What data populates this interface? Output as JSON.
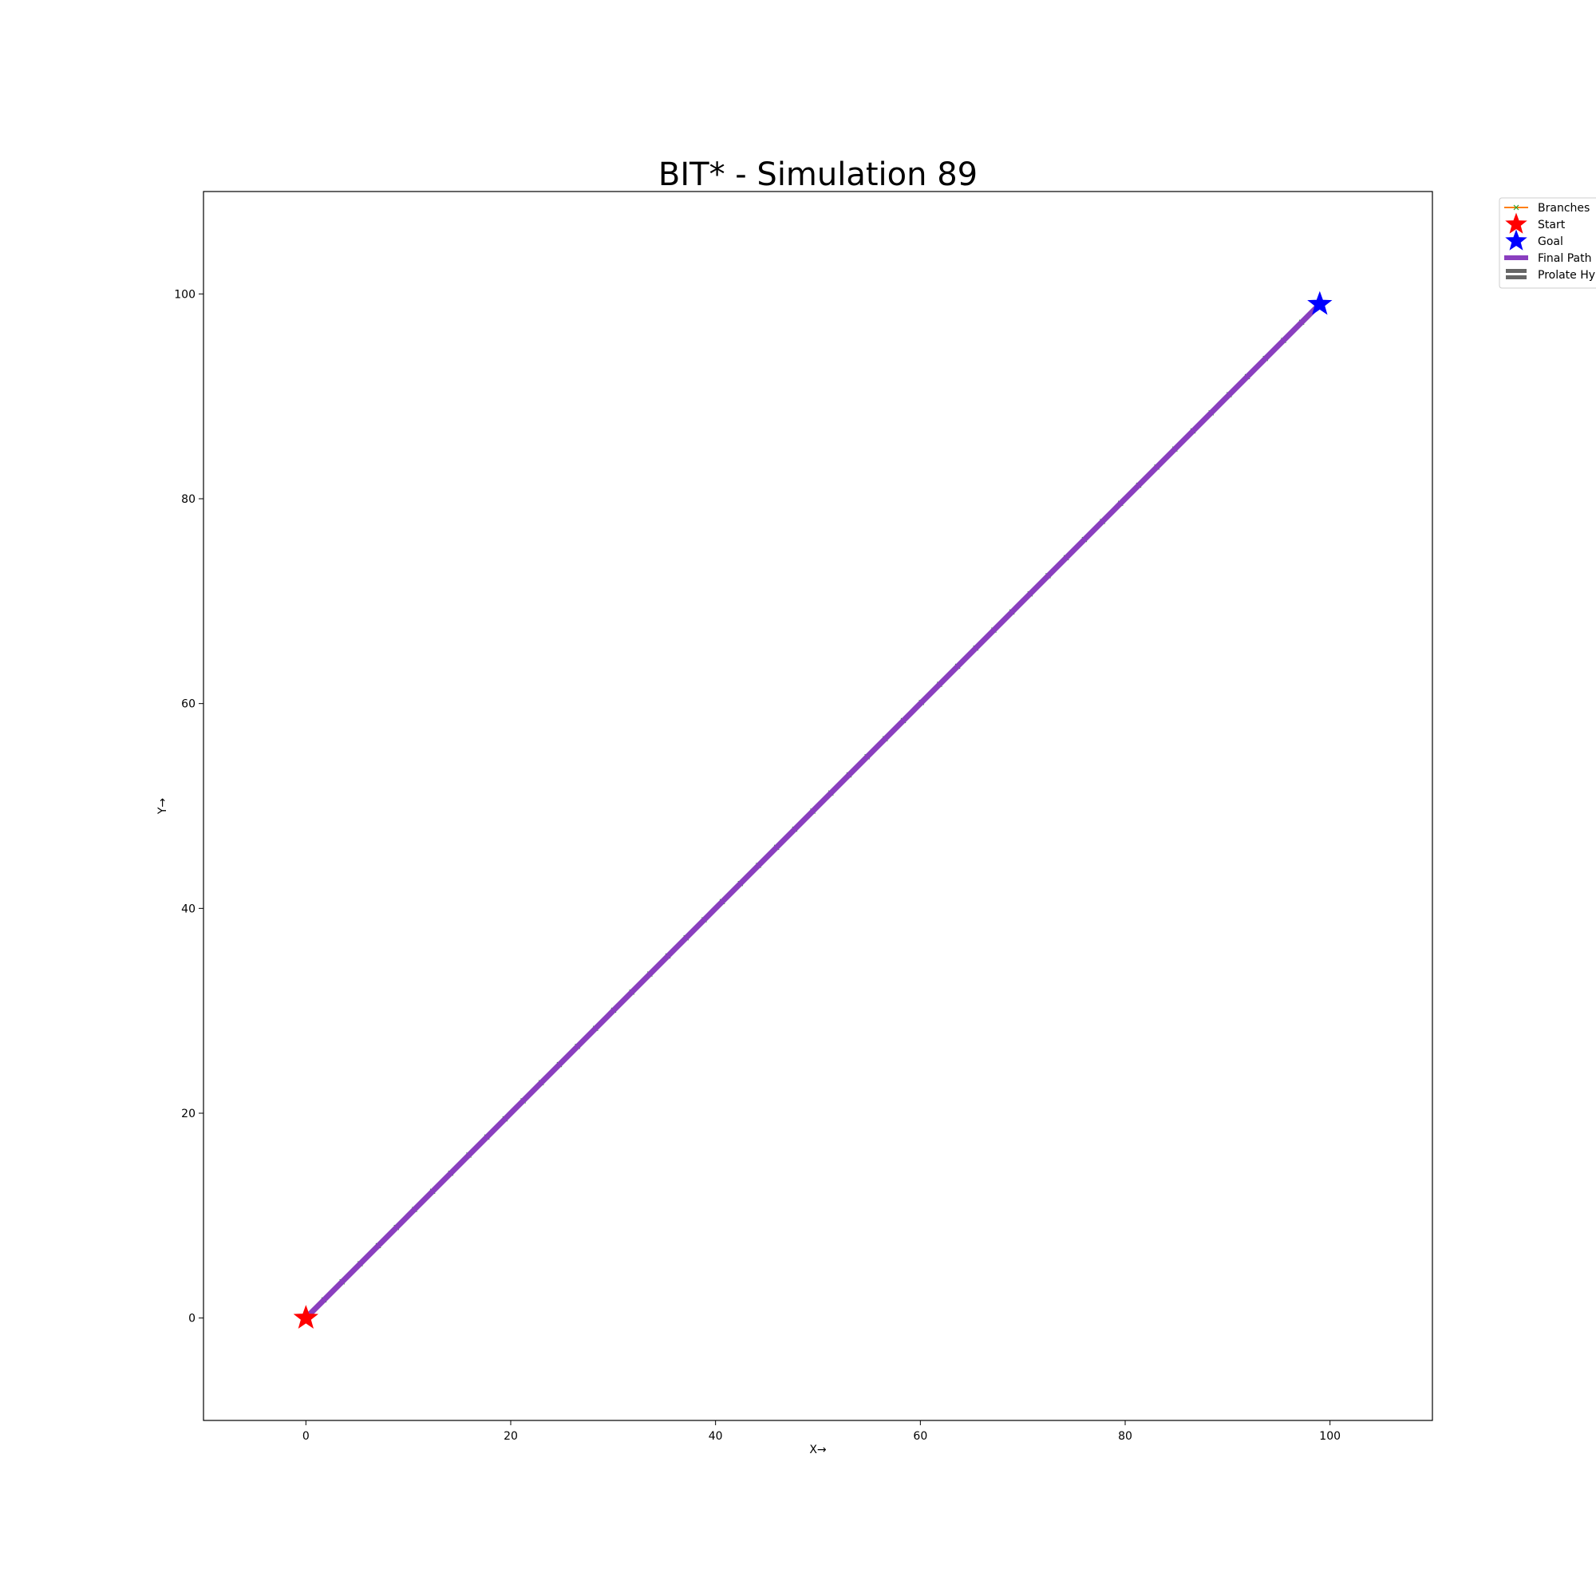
{
  "chart_data": {
    "type": "line",
    "title": "BIT* - Simulation 89",
    "xlabel": "X→",
    "ylabel": "Y→",
    "xlim": [
      -10,
      110
    ],
    "ylim": [
      -10,
      110
    ],
    "x_ticks": [
      0,
      20,
      40,
      60,
      80,
      100
    ],
    "y_ticks": [
      0,
      20,
      40,
      60,
      80,
      100
    ],
    "x_tick_labels": [
      "0",
      "20",
      "40",
      "60",
      "80",
      "100"
    ],
    "y_tick_labels": [
      "0",
      "20",
      "40",
      "60",
      "80",
      "100"
    ],
    "grid": false,
    "legend_position": "outside-top-right",
    "legend": [
      {
        "label": "Branches",
        "color": "#ff7f0e",
        "marker": "x",
        "marker_color": "#2ca02c"
      },
      {
        "label": "Start",
        "color": "#ff0000",
        "marker": "star"
      },
      {
        "label": "Goal",
        "color": "#0000ff",
        "marker": "star"
      },
      {
        "label": "Final Path",
        "color": "#8a3fbf"
      },
      {
        "label": "Prolate Hyp",
        "color": "#666666"
      }
    ],
    "start": {
      "x": 0,
      "y": 0,
      "color": "#ff0000"
    },
    "goal": {
      "x": 99,
      "y": 99,
      "color": "#0000ff"
    },
    "final_path": {
      "color": "#8a3fbf",
      "points": [
        [
          0,
          0
        ],
        [
          99,
          99
        ]
      ]
    },
    "branches": {
      "color": "#ff7f0e",
      "marker_color": "#2ca02c",
      "points": [
        [
          0,
          0
        ],
        [
          99,
          99
        ]
      ]
    }
  }
}
